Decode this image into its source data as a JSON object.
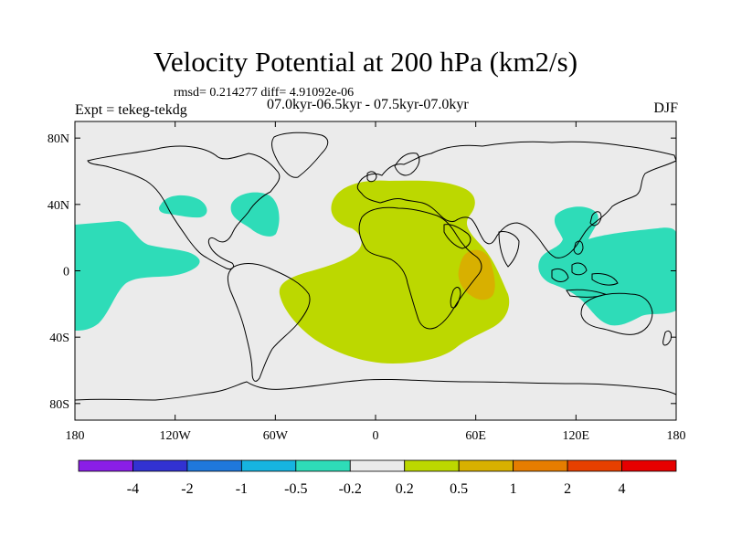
{
  "title": "Velocity Potential at 200 hPa (km2/s)",
  "stats_line": "rmsd= 0.214277 diff= 4.91092e-06",
  "experiment_label": "Expt = tekeg-tekdg",
  "period_label": "07.0kyr-06.5kyr - 07.5kyr-07.0kyr",
  "season_label": "DJF",
  "map": {
    "projection": "cylindrical equidistant",
    "lon_range": [
      -180,
      180
    ],
    "lat_range": [
      -90,
      90
    ],
    "lat_ticks": [
      {
        "value": 80,
        "label": "80N"
      },
      {
        "value": 40,
        "label": "40N"
      },
      {
        "value": 0,
        "label": "0"
      },
      {
        "value": -40,
        "label": "40S"
      },
      {
        "value": -80,
        "label": "80S"
      }
    ],
    "lon_ticks": [
      {
        "value": -180,
        "label": "180"
      },
      {
        "value": -120,
        "label": "120W"
      },
      {
        "value": -60,
        "label": "60W"
      },
      {
        "value": 0,
        "label": "0"
      },
      {
        "value": 60,
        "label": "60E"
      },
      {
        "value": 120,
        "label": "120E"
      },
      {
        "value": 180,
        "label": "180"
      }
    ],
    "background_color": "#ebebeb",
    "regions": [
      {
        "name": "north-pacific-negative-anomaly",
        "level": "-0.5 to -0.2",
        "color": "#2edcb8"
      },
      {
        "name": "north-atlantic-west-negative-anomaly",
        "level": "-0.5 to -0.2",
        "color": "#2edcb8"
      },
      {
        "name": "east-pacific-negative-anomaly",
        "level": "-0.5 to -0.2",
        "color": "#2edcb8"
      },
      {
        "name": "indo-pacific-negative-anomaly",
        "level": "-0.5 to -0.2",
        "color": "#2edcb8"
      },
      {
        "name": "africa-atlantic-positive-anomaly",
        "level": "0.2 to 0.5",
        "color": "#bcd800"
      },
      {
        "name": "east-africa-positive-max",
        "level": "0.5 to 1",
        "color": "#d8b000"
      }
    ]
  },
  "colorbar": {
    "colors": [
      "#8a1ee6",
      "#3232d2",
      "#1f78dc",
      "#16b4e0",
      "#2edcb8",
      "#ebebeb",
      "#bcd800",
      "#d8b000",
      "#e67d00",
      "#e64000",
      "#e60000"
    ],
    "labels": [
      "-4",
      "-2",
      "-1",
      "-0.5",
      "-0.2",
      "0.2",
      "0.5",
      "1",
      "2",
      "4"
    ]
  }
}
